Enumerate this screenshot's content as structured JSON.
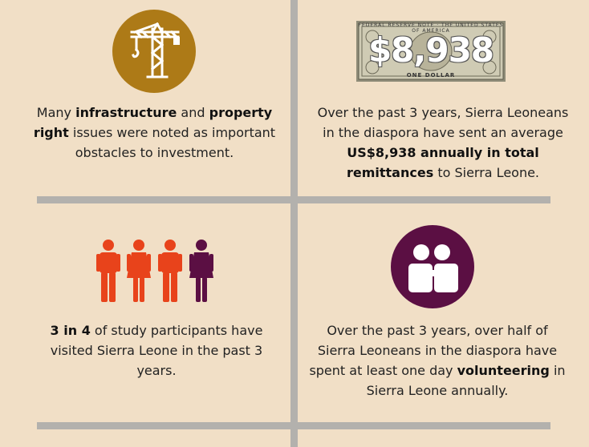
{
  "cells": {
    "infrastructure": {
      "icon": "crane-icon",
      "parts": [
        "Many ",
        "infrastructure",
        " and ",
        "property right",
        " issues were noted as important obstacles to investment."
      ]
    },
    "remittances": {
      "icon": "dollar-bill-icon",
      "amount": "$8,938",
      "bill_top": "FEDERAL RESERVE NOTE · THE UNITED STATES OF AMERICA",
      "bill_bottom": "ONE DOLLAR",
      "parts": [
        "Over the past 3 years, Sierra Leoneans in the diaspora have sent an average ",
        "US$8,938 annually in total remittances",
        " to Sierra Leone."
      ]
    },
    "visits": {
      "icon": "people-icon",
      "parts": [
        "3 in 4",
        " of study participants have visited Sierra Leone in the past 3 years."
      ]
    },
    "volunteering": {
      "icon": "hug-icon",
      "parts": [
        "Over the past 3 years, over half of Sierra Leoneans in the diaspora have spent at least one day ",
        "volunteering",
        " in Sierra Leone annually."
      ]
    }
  },
  "colors": {
    "background": "#f1dfc6",
    "divider": "#b3b1ad",
    "crane_circle": "#ad7a17",
    "person_orange": "#e8431b",
    "person_purple": "#5b0f43",
    "hug_circle": "#5b0f43"
  }
}
